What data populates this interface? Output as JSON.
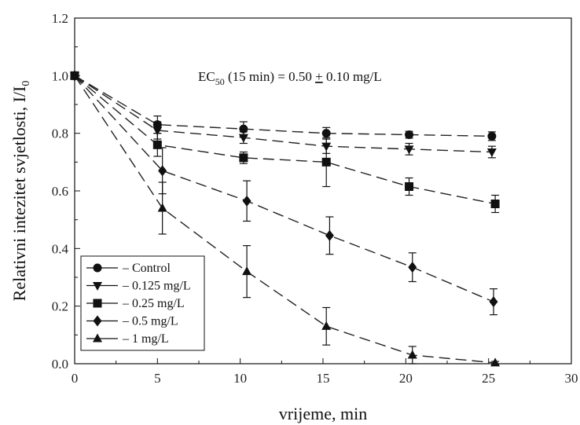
{
  "chart_data": {
    "type": "line",
    "xlabel": "vrijeme, min",
    "ylabel_main": "Relativni intezitet svjetlosti, I/I",
    "ylabel_sub": "0",
    "xlim": [
      0,
      30
    ],
    "ylim": [
      0,
      1.2
    ],
    "x_ticks": [
      "0",
      "5",
      "10",
      "15",
      "20",
      "25",
      "30"
    ],
    "y_ticks": [
      "0.0",
      "0.2",
      "0.4",
      "0.6",
      "0.8",
      "1.0",
      "1.2"
    ],
    "annotation": {
      "prefix": "EC",
      "sub": "50",
      "rest": " (15 min) = 0.50 ",
      "pm": "+",
      "tail": " 0.10 mg/L"
    },
    "legend_position": "bottom-left",
    "series": [
      {
        "name": "Control",
        "marker": "circle",
        "x": [
          0,
          5,
          10.2,
          15.2,
          20.2,
          25.2
        ],
        "y": [
          1.0,
          0.83,
          0.815,
          0.8,
          0.795,
          0.79
        ],
        "err": [
          0,
          0.03,
          0.025,
          0.02,
          0.012,
          0.015
        ]
      },
      {
        "name": "0.125 mg/L",
        "marker": "triangle-down",
        "x": [
          0,
          5,
          10.2,
          15.2,
          20.2,
          25.2
        ],
        "y": [
          1.0,
          0.81,
          0.785,
          0.755,
          0.745,
          0.735
        ],
        "err": [
          0,
          0.03,
          0.02,
          0.025,
          0.02,
          0.02
        ]
      },
      {
        "name": "0.25 mg/L",
        "marker": "square",
        "x": [
          0,
          5,
          10.2,
          15.2,
          20.2,
          25.4
        ],
        "y": [
          1.0,
          0.76,
          0.715,
          0.7,
          0.615,
          0.555
        ],
        "err": [
          0,
          0.04,
          0.02,
          0.085,
          0.03,
          0.03
        ]
      },
      {
        "name": "0.5 mg/L",
        "marker": "diamond",
        "x": [
          0,
          5.3,
          10.4,
          15.4,
          20.4,
          25.3
        ],
        "y": [
          1.0,
          0.67,
          0.565,
          0.445,
          0.335,
          0.215
        ],
        "err": [
          0,
          0.08,
          0.07,
          0.065,
          0.05,
          0.045
        ]
      },
      {
        "name": "1 mg/L",
        "marker": "triangle-up",
        "x": [
          0,
          5.3,
          10.4,
          15.2,
          20.4,
          25.4
        ],
        "y": [
          1.0,
          0.54,
          0.32,
          0.13,
          0.03,
          0.003
        ],
        "err": [
          0,
          0.09,
          0.09,
          0.065,
          0.03,
          0.005
        ]
      }
    ]
  }
}
